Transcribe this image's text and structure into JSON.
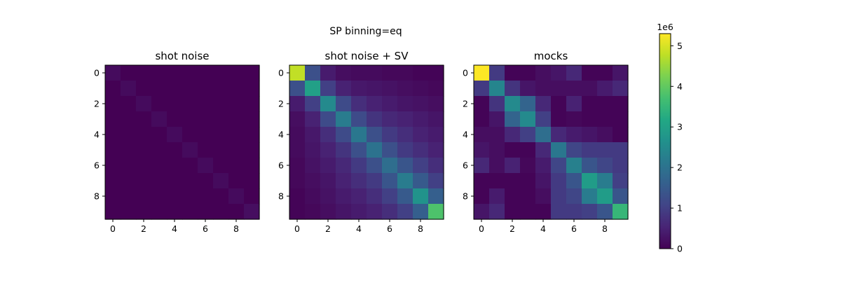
{
  "chart_data": {
    "suptitle": "SP binning=eq",
    "type": "heatmap",
    "colormap": "viridis",
    "ticks": [
      0,
      2,
      4,
      6,
      8
    ],
    "colorbar": {
      "min": 0,
      "max": 5.3,
      "ticks": [
        0,
        1,
        2,
        3,
        4,
        5
      ],
      "offset_label": "1e6"
    },
    "panels": [
      {
        "title": "shot noise",
        "matrix": [
          [
            0.15,
            0,
            0,
            0,
            0,
            0,
            0,
            0,
            0,
            0
          ],
          [
            0,
            0.15,
            0,
            0,
            0,
            0,
            0,
            0,
            0,
            0
          ],
          [
            0,
            0,
            0.15,
            0,
            0,
            0,
            0,
            0,
            0,
            0
          ],
          [
            0,
            0,
            0,
            0.15,
            0,
            0,
            0,
            0,
            0,
            0
          ],
          [
            0,
            0,
            0,
            0,
            0.15,
            0,
            0,
            0,
            0,
            0
          ],
          [
            0,
            0,
            0,
            0,
            0,
            0.15,
            0,
            0,
            0,
            0
          ],
          [
            0,
            0,
            0,
            0,
            0,
            0,
            0.15,
            0,
            0,
            0
          ],
          [
            0,
            0,
            0,
            0,
            0,
            0,
            0,
            0.15,
            0,
            0
          ],
          [
            0,
            0,
            0,
            0,
            0,
            0,
            0,
            0,
            0.15,
            0
          ],
          [
            0,
            0,
            0,
            0,
            0,
            0,
            0,
            0,
            0,
            0.2
          ]
        ]
      },
      {
        "title": "shot noise + SV",
        "matrix": [
          [
            4.8,
            1.3,
            0.4,
            0.2,
            0.15,
            0.15,
            0.1,
            0.1,
            0.05,
            0.05
          ],
          [
            1.3,
            3.0,
            1.0,
            0.5,
            0.35,
            0.3,
            0.25,
            0.2,
            0.15,
            0.1
          ],
          [
            0.4,
            1.0,
            2.5,
            1.2,
            0.7,
            0.5,
            0.4,
            0.3,
            0.25,
            0.2
          ],
          [
            0.2,
            0.5,
            1.2,
            2.2,
            1.2,
            0.8,
            0.6,
            0.5,
            0.4,
            0.3
          ],
          [
            0.15,
            0.35,
            0.7,
            1.2,
            2.1,
            1.3,
            0.9,
            0.7,
            0.5,
            0.4
          ],
          [
            0.15,
            0.3,
            0.5,
            0.8,
            1.3,
            2.0,
            1.3,
            0.9,
            0.7,
            0.5
          ],
          [
            0.1,
            0.25,
            0.4,
            0.6,
            0.9,
            1.3,
            1.9,
            1.4,
            1.0,
            0.7
          ],
          [
            0.1,
            0.2,
            0.3,
            0.5,
            0.7,
            0.9,
            1.4,
            2.2,
            1.5,
            1.0
          ],
          [
            0.05,
            0.15,
            0.25,
            0.4,
            0.5,
            0.7,
            1.0,
            1.5,
            2.7,
            1.6
          ],
          [
            0.05,
            0.1,
            0.2,
            0.3,
            0.4,
            0.5,
            0.7,
            1.0,
            1.6,
            3.8
          ]
        ]
      },
      {
        "title": "mocks",
        "matrix": [
          [
            5.3,
            0.9,
            0.05,
            0.05,
            0.2,
            0.3,
            0.6,
            0.05,
            0.05,
            0.3
          ],
          [
            0.9,
            2.4,
            0.8,
            0.3,
            0.2,
            0.2,
            0.2,
            0.2,
            0.4,
            0.6
          ],
          [
            0.05,
            0.8,
            2.5,
            1.7,
            0.6,
            0.05,
            0.5,
            0.05,
            0.05,
            0.05
          ],
          [
            0.05,
            0.3,
            1.7,
            2.5,
            1.0,
            0.05,
            0.1,
            0.05,
            0.05,
            0.05
          ],
          [
            0.2,
            0.2,
            0.6,
            1.0,
            1.9,
            0.6,
            0.4,
            0.3,
            0.2,
            0.05
          ],
          [
            0.3,
            0.2,
            0.05,
            0.05,
            0.6,
            2.1,
            1.1,
            0.9,
            0.9,
            0.9
          ],
          [
            0.6,
            0.2,
            0.5,
            0.1,
            0.4,
            1.1,
            2.3,
            1.4,
            1.1,
            0.9
          ],
          [
            0.05,
            0.05,
            0.05,
            0.05,
            0.3,
            0.9,
            1.4,
            2.9,
            2.2,
            1.0
          ],
          [
            0.05,
            0.4,
            0.05,
            0.05,
            0.2,
            0.9,
            1.1,
            2.2,
            2.9,
            1.4
          ],
          [
            0.3,
            0.6,
            0.05,
            0.05,
            0.05,
            0.9,
            0.9,
            1.0,
            1.4,
            3.5
          ]
        ]
      }
    ]
  }
}
